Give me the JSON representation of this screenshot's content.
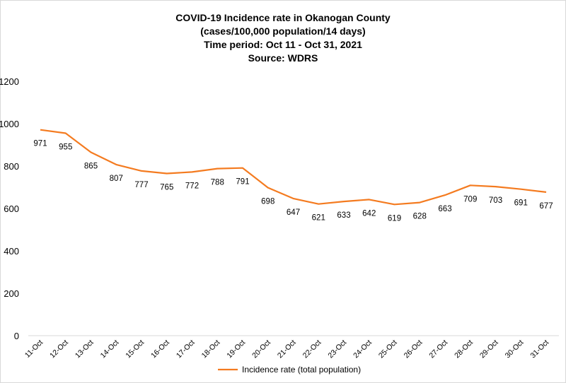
{
  "chart_data": {
    "type": "line",
    "title_lines": [
      "COVID-19 Incidence rate in Okanogan County",
      "(cases/100,000 population/14 days)",
      "Time period: Oct 11 - Oct 31, 2021",
      "Source: WDRS"
    ],
    "categories": [
      "11-Oct",
      "12-Oct",
      "13-Oct",
      "14-Oct",
      "15-Oct",
      "16-Oct",
      "17-Oct",
      "18-Oct",
      "19-Oct",
      "20-Oct",
      "21-Oct",
      "22-Oct",
      "23-Oct",
      "24-Oct",
      "25-Oct",
      "26-Oct",
      "27-Oct",
      "28-Oct",
      "29-Oct",
      "30-Oct",
      "31-Oct"
    ],
    "series": [
      {
        "name": "Incidence rate (total population)",
        "color": "#F47B20",
        "values": [
          971,
          955,
          865,
          807,
          777,
          765,
          772,
          788,
          791,
          698,
          647,
          621,
          633,
          642,
          619,
          628,
          663,
          709,
          703,
          691,
          677
        ]
      }
    ],
    "yticks": [
      0,
      200,
      400,
      600,
      800,
      1000,
      1200
    ],
    "ylim": [
      0,
      1200
    ],
    "grid": false,
    "legend": "bottom",
    "data_labels": true
  }
}
